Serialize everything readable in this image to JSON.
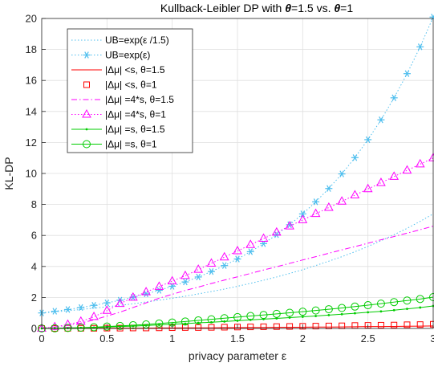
{
  "chart_data": {
    "type": "line",
    "title_parts": [
      "Kullback-Leibler DP with ",
      "θ",
      "=1.5 vs. ",
      "θ",
      "=1"
    ],
    "xlabel": "privacy parameter ε",
    "ylabel": "KL-DP",
    "xlim": [
      0,
      3
    ],
    "ylim": [
      0,
      20
    ],
    "xticks": [
      "0",
      "0.5",
      "1",
      "1.5",
      "2",
      "2.5",
      "3"
    ],
    "yticks": [
      "0",
      "2",
      "4",
      "6",
      "8",
      "10",
      "12",
      "14",
      "16",
      "18",
      "20"
    ],
    "grid": true,
    "legend_position": "top-left",
    "x": [
      0,
      0.1,
      0.2,
      0.3,
      0.4,
      0.5,
      0.6,
      0.7,
      0.8,
      0.9,
      1.0,
      1.1,
      1.2,
      1.3,
      1.4,
      1.5,
      1.6,
      1.7,
      1.8,
      1.9,
      2.0,
      2.1,
      2.2,
      2.3,
      2.4,
      2.5,
      2.6,
      2.7,
      2.8,
      2.9,
      3.0
    ],
    "series": [
      {
        "name": "UB=exp(ε /1.5)",
        "color": "#4DBEEE",
        "style": "dotted",
        "marker": "none",
        "values": [
          1.0,
          1.07,
          1.14,
          1.22,
          1.31,
          1.4,
          1.49,
          1.59,
          1.71,
          1.82,
          1.95,
          2.08,
          2.23,
          2.38,
          2.54,
          2.72,
          2.91,
          3.11,
          3.32,
          3.55,
          3.79,
          4.06,
          4.34,
          4.63,
          4.95,
          5.29,
          5.66,
          6.05,
          6.46,
          6.91,
          7.39
        ]
      },
      {
        "name": "UB=exp(ε)",
        "color": "#4DBEEE",
        "style": "dotted",
        "marker": "asterisk",
        "values": [
          1.0,
          1.11,
          1.22,
          1.35,
          1.49,
          1.65,
          1.82,
          2.01,
          2.23,
          2.46,
          2.72,
          3.0,
          3.32,
          3.67,
          4.06,
          4.48,
          4.95,
          5.47,
          6.05,
          6.69,
          7.39,
          8.17,
          9.03,
          9.97,
          11.02,
          12.18,
          13.46,
          14.88,
          16.44,
          18.17,
          20.09
        ]
      },
      {
        "name": "|Δμ| <s, θ=1.5",
        "color": "#FF0000",
        "style": "solid",
        "marker": "none",
        "values": [
          0.0,
          0.0,
          0.0,
          0.01,
          0.01,
          0.01,
          0.02,
          0.02,
          0.02,
          0.03,
          0.03,
          0.04,
          0.04,
          0.04,
          0.05,
          0.05,
          0.06,
          0.06,
          0.07,
          0.08,
          0.08,
          0.09,
          0.09,
          0.1,
          0.11,
          0.12,
          0.12,
          0.13,
          0.14,
          0.15,
          0.16
        ]
      },
      {
        "name": "|Δμ| <s, θ=1",
        "color": "#FF0000",
        "style": "none",
        "marker": "square",
        "values": [
          0.0,
          0.0,
          0.01,
          0.01,
          0.01,
          0.02,
          0.02,
          0.03,
          0.03,
          0.04,
          0.05,
          0.06,
          0.06,
          0.07,
          0.08,
          0.09,
          0.1,
          0.11,
          0.12,
          0.13,
          0.14,
          0.15,
          0.16,
          0.17,
          0.19,
          0.2,
          0.21,
          0.22,
          0.24,
          0.25,
          0.27
        ]
      },
      {
        "name": "|Δμ| =4*s, θ=1.5",
        "color": "#FF00FF",
        "style": "dashdot",
        "marker": "none",
        "values": [
          0.0,
          0.1,
          0.2,
          0.35,
          0.55,
          0.8,
          1.05,
          1.35,
          1.65,
          1.95,
          2.2,
          2.45,
          2.67,
          2.9,
          3.12,
          3.33,
          3.55,
          3.77,
          3.98,
          4.2,
          4.42,
          4.63,
          4.85,
          5.07,
          5.28,
          5.5,
          5.72,
          5.93,
          6.15,
          6.37,
          6.6
        ]
      },
      {
        "name": "|Δμ| =4*s, θ=1",
        "color": "#FF00FF",
        "style": "dotted",
        "marker": "triangle",
        "values": [
          0.0,
          0.1,
          0.25,
          0.45,
          0.75,
          1.15,
          1.6,
          2.0,
          2.35,
          2.7,
          3.05,
          3.4,
          3.8,
          4.2,
          4.6,
          5.0,
          5.4,
          5.8,
          6.2,
          6.6,
          7.0,
          7.4,
          7.8,
          8.2,
          8.6,
          9.0,
          9.4,
          9.8,
          10.2,
          10.6,
          11.0
        ]
      },
      {
        "name": "|Δμ| =s, θ=1.5",
        "color": "#00CC00",
        "style": "solid",
        "marker": "point",
        "values": [
          0.0,
          0.01,
          0.02,
          0.04,
          0.06,
          0.09,
          0.12,
          0.15,
          0.19,
          0.23,
          0.27,
          0.31,
          0.36,
          0.4,
          0.45,
          0.5,
          0.55,
          0.6,
          0.65,
          0.7,
          0.75,
          0.8,
          0.86,
          0.92,
          0.98,
          1.04,
          1.1,
          1.18,
          1.26,
          1.35,
          1.45
        ]
      },
      {
        "name": "|Δμ| =s, θ=1",
        "color": "#00CC00",
        "style": "solid",
        "marker": "circle",
        "values": [
          0.0,
          0.01,
          0.03,
          0.05,
          0.08,
          0.12,
          0.16,
          0.21,
          0.26,
          0.32,
          0.38,
          0.45,
          0.52,
          0.59,
          0.66,
          0.73,
          0.8,
          0.87,
          0.94,
          1.01,
          1.08,
          1.16,
          1.24,
          1.32,
          1.41,
          1.5,
          1.6,
          1.7,
          1.8,
          1.9,
          2.02
        ]
      }
    ]
  }
}
